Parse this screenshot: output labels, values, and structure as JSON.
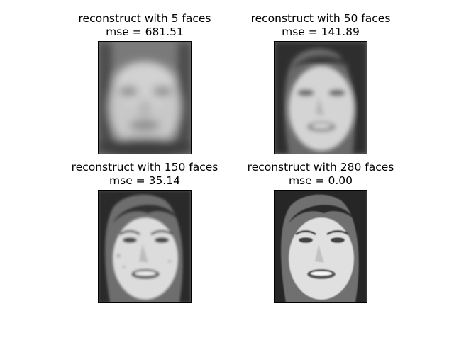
{
  "figure": {
    "background": "#ffffff",
    "image_style": "grayscale"
  },
  "panels": [
    {
      "title": "reconstruct with 5 faces",
      "subtitle": "mse = 681.51",
      "n_components": 5,
      "mse": 681.51,
      "detail": "very blurry"
    },
    {
      "title": "reconstruct with 50 faces",
      "subtitle": "mse = 141.89",
      "n_components": 50,
      "mse": 141.89,
      "detail": "blurry"
    },
    {
      "title": "reconstruct with 150 faces",
      "subtitle": "mse = 35.14",
      "n_components": 150,
      "mse": 35.14,
      "detail": "slightly noisy"
    },
    {
      "title": "reconstruct with 280 faces",
      "subtitle": "mse = 0.00",
      "n_components": 280,
      "mse": 0.0,
      "detail": "exact"
    }
  ]
}
